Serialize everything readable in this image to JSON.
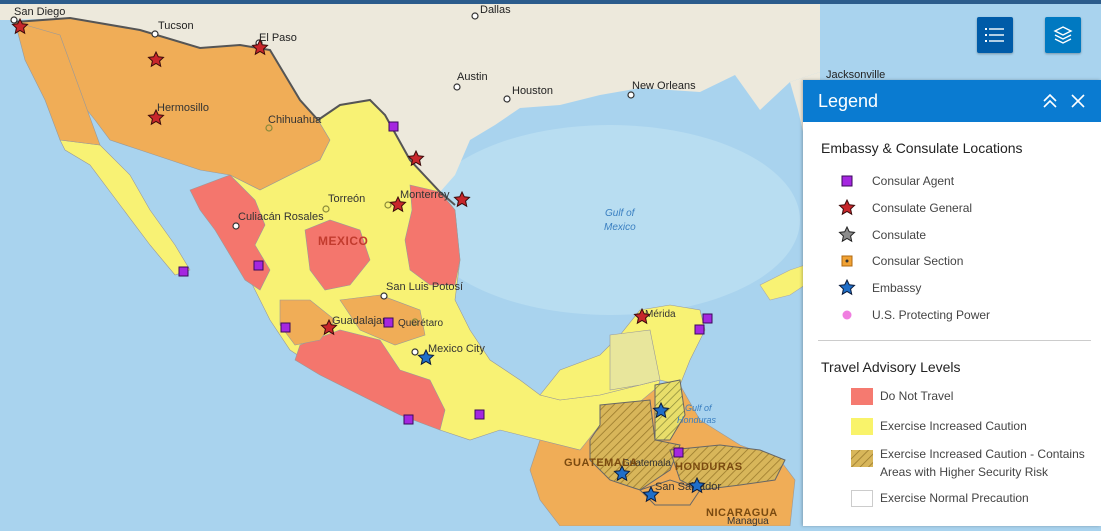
{
  "map": {
    "cities": [
      {
        "name": "San Diego"
      },
      {
        "name": "Tucson"
      },
      {
        "name": "El Paso"
      },
      {
        "name": "Dallas"
      },
      {
        "name": "Austin"
      },
      {
        "name": "Houston"
      },
      {
        "name": "New Orleans"
      },
      {
        "name": "Jacksonville"
      },
      {
        "name": "Hermosillo"
      },
      {
        "name": "Chihuahua"
      },
      {
        "name": "Torreón"
      },
      {
        "name": "Monterrey"
      },
      {
        "name": "Culiacán Rosales"
      },
      {
        "name": "San Luis Potosí"
      },
      {
        "name": "Guadalajara"
      },
      {
        "name": "Querétaro"
      },
      {
        "name": "Mexico City"
      },
      {
        "name": "Mérida"
      },
      {
        "name": "Guatemala"
      },
      {
        "name": "San Salvador"
      },
      {
        "name": "Managua"
      }
    ],
    "water_labels": [
      "Gulf of",
      "Mexico",
      "Gulf of",
      "Honduras"
    ],
    "country_labels": [
      "MEXICO",
      "GUATEMALA",
      "HONDURAS",
      "NICARAGUA"
    ]
  },
  "toolbar": {
    "list_icon": "list-icon",
    "layers_icon": "layers-icon"
  },
  "legend": {
    "title": "Legend",
    "locations_title": "Embassy & Consulate Locations",
    "locations": [
      {
        "label": "Consular Agent",
        "icon": "purple-square",
        "color": "#a526e0"
      },
      {
        "label": "Consulate General",
        "icon": "red-star",
        "color": "#c8262b"
      },
      {
        "label": "Consulate",
        "icon": "gray-star",
        "color": "#8c8c8c"
      },
      {
        "label": "Consular Section",
        "icon": "orange-square",
        "color": "#f1a234"
      },
      {
        "label": "Embassy",
        "icon": "blue-star",
        "color": "#1f6ec8"
      },
      {
        "label": "U.S. Protecting Power",
        "icon": "pink-dot",
        "color": "#f07ee0"
      }
    ],
    "advisory_title": "Travel Advisory Levels",
    "advisory": [
      {
        "label": "Do Not Travel",
        "color": "#f57a70"
      },
      {
        "label": "Exercise Increased Caution",
        "color": "#f9f36a"
      },
      {
        "label1": "Exercise Increased Caution - Contains",
        "label2": "Areas with Higher Security Risk",
        "color": "#d8b65a"
      },
      {
        "label": "Exercise Normal Precaution",
        "color": "#ffffff"
      }
    ]
  },
  "colors": {
    "do_not_travel": "#f4766d",
    "increased_caution": "#f8f274",
    "reconsider": "#f0ad57",
    "land": "#efece2",
    "water": "#a9d3ee"
  }
}
